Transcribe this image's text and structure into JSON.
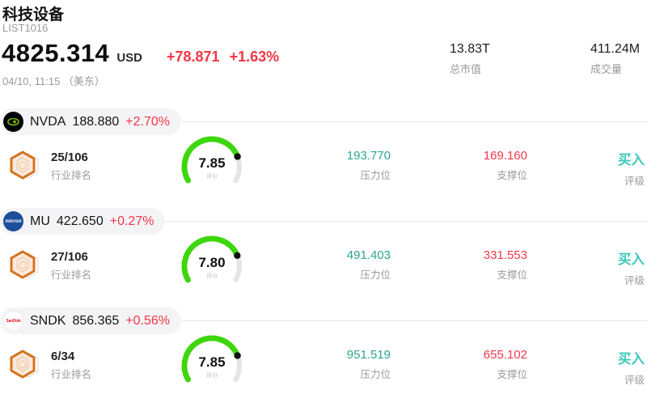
{
  "header": {
    "title": "科技设备",
    "list_id": "LIST1016",
    "price": "4825.314",
    "currency": "USD",
    "change": "+78.871",
    "change_pct": "+1.63%",
    "datetime": "04/10, 11:15 （美东）",
    "market_cap": {
      "value": "13.83T",
      "label": "总市值"
    },
    "volume": {
      "value": "411.24M",
      "label": "成交量"
    }
  },
  "labels": {
    "rank": "行业排名",
    "score": "评分",
    "pressure": "压力位",
    "support": "支撑位",
    "rating": "评级"
  },
  "colors": {
    "up_red": "#f23645",
    "pressure_green": "#2ca58d",
    "rating_teal": "#3cc8ba",
    "gauge_green": "#3ed60c",
    "gauge_track": "#e4e4ea",
    "pill_bg": "#f4f4f6"
  },
  "icons": {
    "nvda_logo": "nvidia-eye-logo",
    "mu_logo": "micron-logo",
    "sndk_logo": "sandisk-logo",
    "rank_badge": "rank-hexagon-icon"
  },
  "logo_text": {
    "mu": "micron",
    "sndk": "SanDisk"
  },
  "stocks": [
    {
      "ticker": "NVDA",
      "price": "188.880",
      "change_pct": "+2.70%",
      "rank": "25/106",
      "score": "7.85",
      "pressure": "193.770",
      "support": "169.160",
      "rating": "买入"
    },
    {
      "ticker": "MU",
      "price": "422.650",
      "change_pct": "+0.27%",
      "rank": "27/106",
      "score": "7.80",
      "pressure": "491.403",
      "support": "331.553",
      "rating": "买入"
    },
    {
      "ticker": "SNDK",
      "price": "856.365",
      "change_pct": "+0.56%",
      "rank": "6/34",
      "score": "7.85",
      "pressure": "951.519",
      "support": "655.102",
      "rating": "买入"
    }
  ]
}
